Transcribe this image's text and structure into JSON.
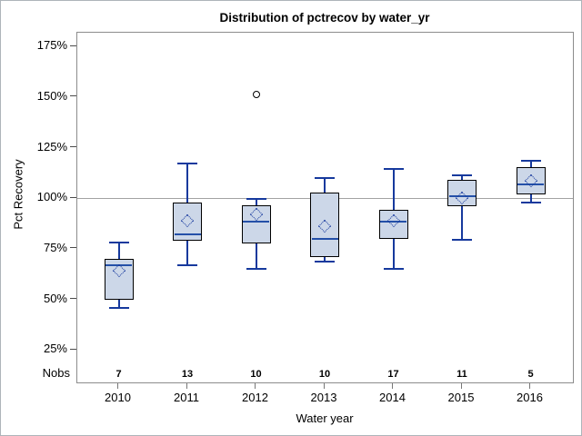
{
  "figure": {
    "title": "Distribution of pctrecov by water_yr",
    "y_axis_label": "Pct Recovery",
    "x_axis_label": "Water year",
    "nobs_label": "Nobs"
  },
  "chart_data": {
    "type": "box",
    "title": "Distribution of pctrecov by water_yr",
    "xlabel": "Water year",
    "ylabel": "Pct Recovery",
    "y_unit": "%",
    "ylim": [
      25,
      175
    ],
    "y_ticks": [
      175,
      150,
      125,
      100,
      75,
      50,
      25
    ],
    "y_tick_labels": [
      "175%",
      "150%",
      "125%",
      "100%",
      "75%",
      "50%",
      "25%"
    ],
    "grid": false,
    "legend": "none",
    "reference_line": 100,
    "nobs_row_label": "Nobs",
    "categories": [
      "2010",
      "2011",
      "2012",
      "2013",
      "2014",
      "2015",
      "2016"
    ],
    "nobs": [
      7,
      13,
      10,
      10,
      17,
      11,
      5
    ],
    "boxes": [
      {
        "category": "2010",
        "whisker_low": 46,
        "q1": 50,
        "median": 67,
        "mean": 64,
        "q3": 70,
        "whisker_high": 78,
        "outliers": []
      },
      {
        "category": "2011",
        "whisker_low": 67,
        "q1": 79,
        "median": 82,
        "mean": 89,
        "q3": 98,
        "whisker_high": 117,
        "outliers": []
      },
      {
        "category": "2012",
        "whisker_low": 65,
        "q1": 77.5,
        "median": 88.5,
        "mean": 92,
        "q3": 96.5,
        "whisker_high": 99.5,
        "outliers": [
          151.5
        ]
      },
      {
        "category": "2013",
        "whisker_low": 68.5,
        "q1": 71,
        "median": 80,
        "mean": 86,
        "q3": 103,
        "whisker_high": 110,
        "outliers": []
      },
      {
        "category": "2014",
        "whisker_low": 65,
        "q1": 80,
        "median": 88.5,
        "mean": 89,
        "q3": 94.5,
        "whisker_high": 114.5,
        "outliers": []
      },
      {
        "category": "2015",
        "whisker_low": 79.5,
        "q1": 96,
        "median": 101,
        "mean": 100,
        "q3": 109,
        "whisker_high": 111.5,
        "outliers": []
      },
      {
        "category": "2016",
        "whisker_low": 98,
        "q1": 102,
        "median": 107,
        "mean": 108.5,
        "q3": 115.5,
        "whisker_high": 118.5,
        "outliers": []
      }
    ],
    "colors": {
      "box_fill": "#ccd7e8",
      "box_border": "#000000",
      "whisker": "#16399d",
      "median": "#2450a8",
      "mean_marker": "#16399d",
      "outlier_stroke": "#000000",
      "reference_line": "#a3a3a3"
    }
  }
}
